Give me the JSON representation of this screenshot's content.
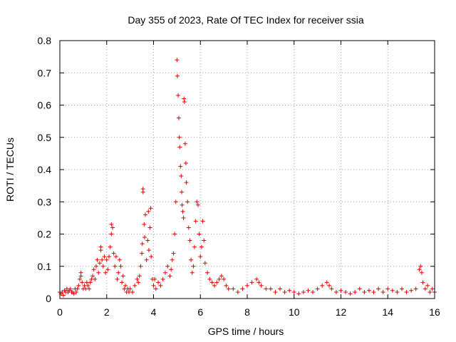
{
  "chart_data": {
    "type": "scatter",
    "title": "Day 355 of 2023, Rate Of TEC Index for receiver ssia",
    "xlabel": "GPS time / hours",
    "ylabel": "ROTI / TECUs",
    "xlim": [
      0,
      16
    ],
    "ylim": [
      0,
      0.8
    ],
    "xticks": [
      0,
      2,
      4,
      6,
      8,
      10,
      12,
      14,
      16
    ],
    "xtick_labels": [
      "0",
      "2",
      "4",
      "6",
      "8",
      "10",
      "12",
      "14",
      "16"
    ],
    "yticks": [
      0,
      0.1,
      0.2,
      0.3,
      0.4,
      0.5,
      0.6,
      0.7,
      0.8
    ],
    "ytick_labels": [
      "0",
      "0.1",
      "0.2",
      "0.3",
      "0.4",
      "0.5",
      "0.6",
      "0.7",
      "0.8"
    ],
    "grid": true,
    "marker": "+",
    "color": "#e00000",
    "series": [
      {
        "name": "ROTI",
        "points": [
          [
            0.0,
            0.02
          ],
          [
            0.05,
            0.015
          ],
          [
            0.1,
            0.02
          ],
          [
            0.15,
            0.01
          ],
          [
            0.2,
            0.025
          ],
          [
            0.25,
            0.02
          ],
          [
            0.3,
            0.03
          ],
          [
            0.35,
            0.02
          ],
          [
            0.4,
            0.025
          ],
          [
            0.45,
            0.03
          ],
          [
            0.5,
            0.02
          ],
          [
            0.55,
            0.02
          ],
          [
            0.6,
            0.015
          ],
          [
            0.65,
            0.03
          ],
          [
            0.7,
            0.02
          ],
          [
            0.75,
            0.03
          ],
          [
            0.8,
            0.04
          ],
          [
            0.85,
            0.06
          ],
          [
            0.9,
            0.08
          ],
          [
            0.9,
            0.07
          ],
          [
            0.95,
            0.05
          ],
          [
            1.0,
            0.03
          ],
          [
            1.05,
            0.04
          ],
          [
            1.1,
            0.03
          ],
          [
            1.15,
            0.05
          ],
          [
            1.2,
            0.04
          ],
          [
            1.25,
            0.03
          ],
          [
            1.3,
            0.05
          ],
          [
            1.35,
            0.06
          ],
          [
            1.4,
            0.07
          ],
          [
            1.45,
            0.09
          ],
          [
            1.5,
            0.06
          ],
          [
            1.55,
            0.1
          ],
          [
            1.6,
            0.12
          ],
          [
            1.65,
            0.08
          ],
          [
            1.7,
            0.11
          ],
          [
            1.75,
            0.15
          ],
          [
            1.75,
            0.16
          ],
          [
            1.8,
            0.12
          ],
          [
            1.85,
            0.1
          ],
          [
            1.9,
            0.13
          ],
          [
            1.95,
            0.08
          ],
          [
            2.0,
            0.12
          ],
          [
            2.05,
            0.09
          ],
          [
            2.1,
            0.13
          ],
          [
            2.15,
            0.16
          ],
          [
            2.2,
            0.2
          ],
          [
            2.2,
            0.23
          ],
          [
            2.25,
            0.22
          ],
          [
            2.3,
            0.14
          ],
          [
            2.35,
            0.1
          ],
          [
            2.4,
            0.13
          ],
          [
            2.45,
            0.06
          ],
          [
            2.5,
            0.08
          ],
          [
            2.55,
            0.12
          ],
          [
            2.6,
            0.1
          ],
          [
            2.65,
            0.05
          ],
          [
            2.7,
            0.07
          ],
          [
            2.75,
            0.03
          ],
          [
            2.8,
            0.04
          ],
          [
            2.85,
            0.02
          ],
          [
            2.9,
            0.03
          ],
          [
            2.95,
            0.02
          ],
          [
            3.0,
            0.03
          ],
          [
            3.1,
            0.02
          ],
          [
            3.2,
            0.04
          ],
          [
            3.3,
            0.06
          ],
          [
            3.35,
            0.05
          ],
          [
            3.4,
            0.07
          ],
          [
            3.45,
            0.1
          ],
          [
            3.5,
            0.14
          ],
          [
            3.52,
            0.17
          ],
          [
            3.55,
            0.33
          ],
          [
            3.55,
            0.34
          ],
          [
            3.6,
            0.23
          ],
          [
            3.62,
            0.19
          ],
          [
            3.65,
            0.26
          ],
          [
            3.7,
            0.12
          ],
          [
            3.75,
            0.18
          ],
          [
            3.78,
            0.27
          ],
          [
            3.8,
            0.15
          ],
          [
            3.85,
            0.22
          ],
          [
            3.88,
            0.28
          ],
          [
            3.9,
            0.13
          ],
          [
            3.95,
            0.06
          ],
          [
            4.0,
            0.04
          ],
          [
            4.05,
            0.06
          ],
          [
            4.1,
            0.03
          ],
          [
            4.2,
            0.05
          ],
          [
            4.3,
            0.04
          ],
          [
            4.4,
            0.06
          ],
          [
            4.5,
            0.08
          ],
          [
            4.6,
            0.1
          ],
          [
            4.7,
            0.07
          ],
          [
            4.75,
            0.09
          ],
          [
            4.8,
            0.12
          ],
          [
            4.85,
            0.14
          ],
          [
            4.9,
            0.2
          ],
          [
            4.95,
            0.3
          ],
          [
            5.0,
            0.74
          ],
          [
            5.02,
            0.69
          ],
          [
            5.05,
            0.63
          ],
          [
            5.08,
            0.56
          ],
          [
            5.1,
            0.5
          ],
          [
            5.12,
            0.47
          ],
          [
            5.15,
            0.41
          ],
          [
            5.18,
            0.38
          ],
          [
            5.2,
            0.33
          ],
          [
            5.22,
            0.29
          ],
          [
            5.25,
            0.27
          ],
          [
            5.28,
            0.25
          ],
          [
            5.3,
            0.62
          ],
          [
            5.32,
            0.61
          ],
          [
            5.35,
            0.48
          ],
          [
            5.38,
            0.42
          ],
          [
            5.4,
            0.36
          ],
          [
            5.45,
            0.3
          ],
          [
            5.5,
            0.22
          ],
          [
            5.55,
            0.18
          ],
          [
            5.6,
            0.12
          ],
          [
            5.65,
            0.08
          ],
          [
            5.7,
            0.1
          ],
          [
            5.75,
            0.16
          ],
          [
            5.8,
            0.24
          ],
          [
            5.85,
            0.3
          ],
          [
            5.9,
            0.29
          ],
          [
            5.95,
            0.2
          ],
          [
            6.0,
            0.13
          ],
          [
            6.05,
            0.16
          ],
          [
            6.1,
            0.24
          ],
          [
            6.15,
            0.18
          ],
          [
            6.2,
            0.11
          ],
          [
            6.3,
            0.08
          ],
          [
            6.4,
            0.06
          ],
          [
            6.5,
            0.05
          ],
          [
            6.6,
            0.04
          ],
          [
            6.7,
            0.05
          ],
          [
            6.8,
            0.06
          ],
          [
            6.9,
            0.07
          ],
          [
            7.0,
            0.06
          ],
          [
            7.1,
            0.04
          ],
          [
            7.2,
            0.03
          ],
          [
            7.4,
            0.03
          ],
          [
            7.6,
            0.02
          ],
          [
            7.8,
            0.03
          ],
          [
            8.0,
            0.04
          ],
          [
            8.2,
            0.05
          ],
          [
            8.4,
            0.06
          ],
          [
            8.5,
            0.05
          ],
          [
            8.6,
            0.04
          ],
          [
            8.8,
            0.03
          ],
          [
            9.0,
            0.03
          ],
          [
            9.2,
            0.02
          ],
          [
            9.4,
            0.03
          ],
          [
            9.6,
            0.02
          ],
          [
            9.8,
            0.025
          ],
          [
            10.0,
            0.02
          ],
          [
            10.2,
            0.015
          ],
          [
            10.4,
            0.02
          ],
          [
            10.6,
            0.025
          ],
          [
            10.8,
            0.02
          ],
          [
            11.0,
            0.03
          ],
          [
            11.2,
            0.04
          ],
          [
            11.4,
            0.05
          ],
          [
            11.5,
            0.04
          ],
          [
            11.6,
            0.03
          ],
          [
            11.8,
            0.02
          ],
          [
            12.0,
            0.025
          ],
          [
            12.2,
            0.02
          ],
          [
            12.4,
            0.015
          ],
          [
            12.6,
            0.02
          ],
          [
            12.8,
            0.03
          ],
          [
            13.0,
            0.02
          ],
          [
            13.2,
            0.025
          ],
          [
            13.4,
            0.02
          ],
          [
            13.6,
            0.03
          ],
          [
            13.8,
            0.02
          ],
          [
            14.0,
            0.03
          ],
          [
            14.2,
            0.025
          ],
          [
            14.4,
            0.02
          ],
          [
            14.6,
            0.03
          ],
          [
            14.8,
            0.02
          ],
          [
            15.0,
            0.025
          ],
          [
            15.2,
            0.03
          ],
          [
            15.35,
            0.09
          ],
          [
            15.4,
            0.1
          ],
          [
            15.45,
            0.08
          ],
          [
            15.5,
            0.05
          ],
          [
            15.6,
            0.03
          ],
          [
            15.7,
            0.04
          ],
          [
            15.8,
            0.02
          ],
          [
            15.9,
            0.03
          ],
          [
            16.0,
            0.02
          ]
        ]
      }
    ]
  }
}
